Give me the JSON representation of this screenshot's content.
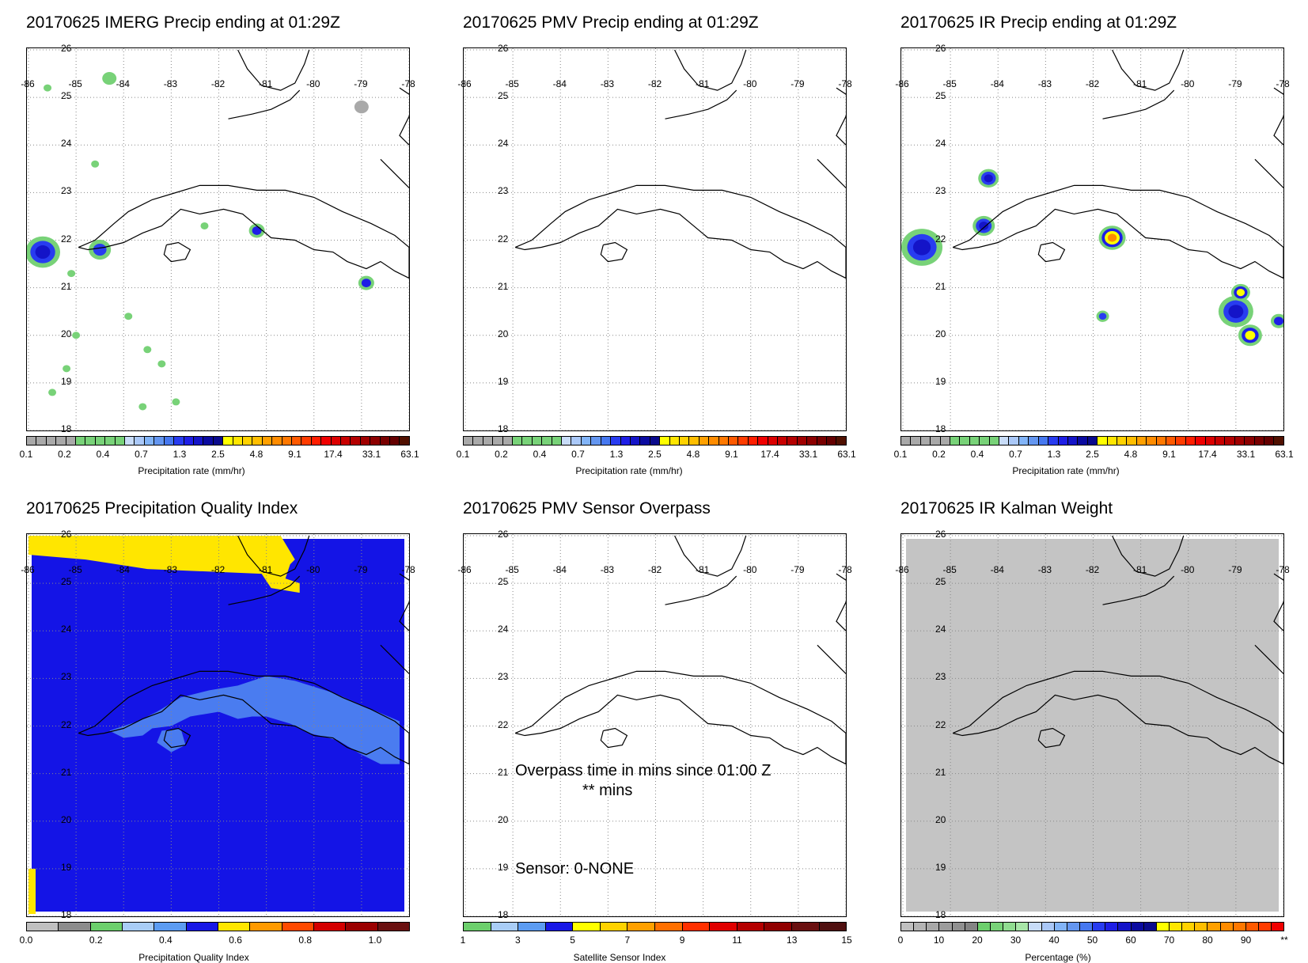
{
  "panels": [
    {
      "title": "20170625 IMERG Precip ending at 01:29Z",
      "cbar_label": "Precipitation rate (mm/hr)"
    },
    {
      "title": "20170625 PMV Precip ending at 01:29Z",
      "cbar_label": "Precipitation rate (mm/hr)"
    },
    {
      "title": "20170625 IR Precip ending at 01:29Z",
      "cbar_label": "Precipitation rate (mm/hr)"
    },
    {
      "title": "20170625 Precipitation Quality Index",
      "cbar_label": "Precipitation Quality Index"
    },
    {
      "title": "20170625 PMV Sensor Overpass",
      "cbar_label": "Satellite Sensor Index"
    },
    {
      "title": "20170625 IR Kalman Weight",
      "cbar_label": "Percentage (%)"
    }
  ],
  "lon_labels": [
    "-86",
    "-85",
    "-84",
    "-83",
    "-82",
    "-81",
    "-80",
    "-79",
    "-78"
  ],
  "lat_labels": [
    "26",
    "25",
    "24",
    "23",
    "22",
    "21",
    "20",
    "19",
    "18"
  ],
  "precip_ticks": [
    "0.1",
    "0.2",
    "0.4",
    "0.7",
    "1.3",
    "2.5",
    "4.8",
    "9.1",
    "17.4",
    "33.1",
    "63.1"
  ],
  "pqi_ticks": [
    "0.0",
    "0.2",
    "0.4",
    "0.6",
    "0.8",
    "1.0"
  ],
  "sensor_ticks": [
    "1",
    "3",
    "5",
    "7",
    "9",
    "11",
    "13",
    "15"
  ],
  "kalman_ticks": [
    "0",
    "10",
    "20",
    "30",
    "40",
    "50",
    "60",
    "70",
    "80",
    "90",
    "**"
  ],
  "overpass": {
    "line1": "Overpass time in mins since 01:00 Z",
    "line2": "** mins",
    "sensor": "Sensor:   0-NONE"
  },
  "colors": {
    "precip": [
      "#a9a9a9",
      "#a9a9a9",
      "#a9a9a9",
      "#a9a9a9",
      "#a9a9a9",
      "#78d278",
      "#78d278",
      "#78d278",
      "#78d278",
      "#78d278",
      "#c8dcf8",
      "#aac8f8",
      "#82b4f8",
      "#6496f0",
      "#4678f0",
      "#283cf0",
      "#1e1ee6",
      "#1414c8",
      "#0a0aa0",
      "#0a0a8c",
      "#ffff00",
      "#ffe600",
      "#ffd200",
      "#ffbe00",
      "#ffa000",
      "#ff8c00",
      "#ff7800",
      "#ff5a00",
      "#ff3c00",
      "#ff1e00",
      "#f00000",
      "#dc0000",
      "#c80000",
      "#b40000",
      "#a00000",
      "#8c0000",
      "#780000",
      "#640000",
      "#501000"
    ],
    "pqi": [
      "#c0c0c0",
      "#8c8c8c",
      "#6ccf6c",
      "#a9cdf6",
      "#5c9cf2",
      "#1818e6",
      "#ffe600",
      "#ff9a00",
      "#ff4a00",
      "#d40000",
      "#9a0000",
      "#6a1010"
    ],
    "sensor": [
      "#6ccf6c",
      "#a9cdf6",
      "#5c9cf2",
      "#1818e6",
      "#ffff00",
      "#ffd200",
      "#ffa000",
      "#ff7000",
      "#ff3000",
      "#e00000",
      "#b40000",
      "#900000",
      "#6a1010",
      "#501010"
    ],
    "kalman": [
      "#c0c0c0",
      "#b4b4b4",
      "#a8a8a8",
      "#9c9c9c",
      "#909090",
      "#848484",
      "#6ccf6c",
      "#78d278",
      "#90dc90",
      "#a8e6a8",
      "#c8dcf8",
      "#aac8f8",
      "#82b4f8",
      "#6496f0",
      "#4678f0",
      "#283cf0",
      "#1e1ee6",
      "#1414c8",
      "#0a0aa0",
      "#0a0a8c",
      "#ffff00",
      "#ffe600",
      "#ffd200",
      "#ffbe00",
      "#ffa000",
      "#ff8c00",
      "#ff7800",
      "#ff5a00",
      "#ff3c00",
      "#f00000"
    ],
    "qi_blue": "#1414e6",
    "qi_light": "#4a7cf0",
    "qi_yellow": "#ffe600",
    "kalman_grey": "#c4c4c4"
  }
}
